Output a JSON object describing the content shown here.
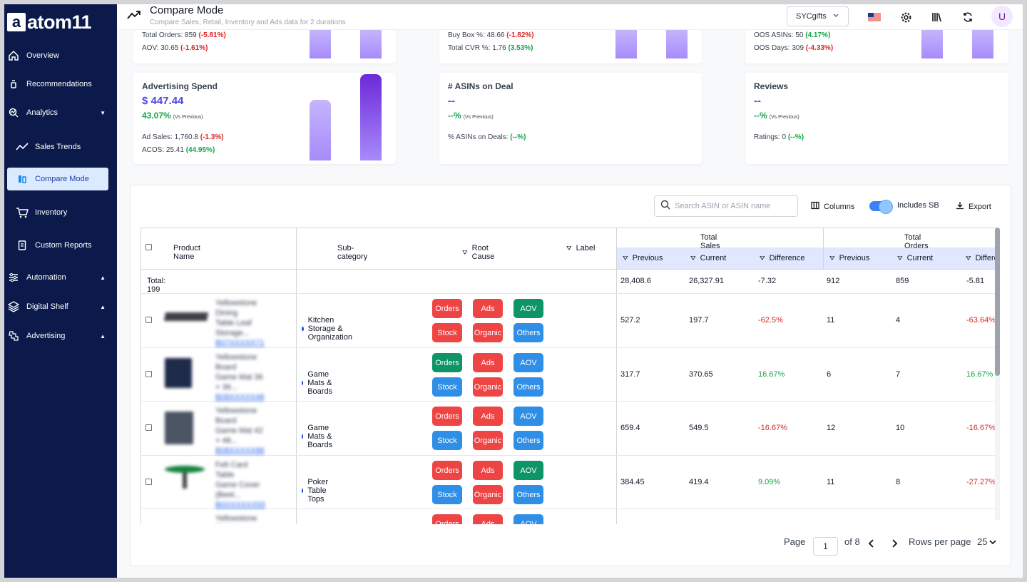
{
  "app": {
    "logo_text": "atom11",
    "logo_mark": "a"
  },
  "sidebar": {
    "items": [
      {
        "label": "Overview",
        "icon": "home-icon"
      },
      {
        "label": "Recommendations",
        "icon": "lightbulb-icon"
      },
      {
        "label": "Analytics",
        "icon": "analytics-icon",
        "caret": "▼"
      },
      {
        "label": "Sales Trends",
        "icon": "trend-icon"
      },
      {
        "label": "Compare Mode",
        "icon": "compare-icon",
        "active": true
      },
      {
        "label": "Inventory",
        "icon": "cart-icon"
      },
      {
        "label": "Custom Reports",
        "icon": "report-icon"
      },
      {
        "label": "Automation",
        "icon": "automation-icon",
        "caret": "▲"
      },
      {
        "label": "Digital Shelf",
        "icon": "shelf-icon",
        "caret": "▲"
      },
      {
        "label": "Advertising",
        "icon": "advertising-icon",
        "caret": "▲"
      }
    ]
  },
  "header": {
    "title": "Compare Mode",
    "subtitle": "Compare Sales, Retail, Inventory and Ads data for 2 durations",
    "store": "SYCgifts",
    "avatar": "U"
  },
  "cards_top": [
    {
      "l1_label": "Total Orders: 859",
      "l1_chg": "(-5.81%)",
      "l2_label": "AOV: 30.65",
      "l2_chg": "(-1.61%)",
      "l2_pos": false
    },
    {
      "l1_label": "Buy Box %: 48.66",
      "l1_chg": "(-1.82%)",
      "l2_label": "Total CVR %: 1.76",
      "l2_chg": "(3.53%)",
      "l2_pos": true
    },
    {
      "l1_label": "OOS ASINs: 50",
      "l1_chg": "(4.17%)",
      "l1_pos": true,
      "l2_label": "OOS Days: 309",
      "l2_chg": "(-4.33%)",
      "l2_pos": false
    }
  ],
  "cards": [
    {
      "title": "Advertising Spend",
      "value": "$ 447.44",
      "change": "43.07%",
      "vs": "(Vs Previous)",
      "l1_label": "Ad Sales: 1,760.8",
      "l1_chg": "(-1.3%)",
      "l2_label": "ACOS: 25.41",
      "l2_chg": "(44.95%)"
    },
    {
      "title": "# ASINs on Deal",
      "value": "--",
      "change": "--%",
      "vs": "(Vs Previous)",
      "l1_label": "% ASINs on Deals:",
      "l1_chg": "(--%)"
    },
    {
      "title": "Reviews",
      "value": "--",
      "change": "--%",
      "vs": "(Vs Previous)",
      "l1_label": "Ratings: 0",
      "l1_chg": "(--%)"
    }
  ],
  "toolbar": {
    "search_placeholder": "Search ASIN or ASIN name",
    "columns": "Columns",
    "includes_sb": "Includes SB",
    "export": "Export"
  },
  "table": {
    "headers": {
      "product": "Product Name",
      "subcat": "Sub-category",
      "root": "Root Cause",
      "label": "Label",
      "total_sales": "Total Sales",
      "total_orders": "Total Orders"
    },
    "subheaders": [
      "Previous",
      "Current",
      "Difference",
      "Previous",
      "Current",
      "Difference"
    ],
    "total": {
      "label": "Total: 199",
      "sales_prev": "28,408.6",
      "sales_cur": "26,327.91",
      "sales_diff": "-7.32",
      "orders_prev": "912",
      "orders_cur": "859",
      "orders_diff": "-5.81"
    },
    "rows": [
      {
        "name1": "Yellowstone Dining",
        "name2": "Table Leaf Storage...",
        "asin": "B07XXXXX71",
        "subcat": "Kitchen Storage & Organization",
        "tags": [
          "Orders",
          "Ads",
          "AOV",
          "Stock",
          "Organic",
          "Others"
        ],
        "colors": [
          "red",
          "red",
          "green",
          "red",
          "red",
          "blue"
        ],
        "sales_prev": "527.2",
        "sales_cur": "197.7",
        "sales_diff": "-62.5%",
        "orders_prev": "11",
        "orders_cur": "4",
        "orders_diff": "-63.64%",
        "pos": false
      },
      {
        "name1": "Yellowstone Board",
        "name2": "Game Mat 36 × 36...",
        "asin": "B08XXXXX48",
        "subcat": "Game Mats & Boards",
        "tags": [
          "Orders",
          "Ads",
          "AOV",
          "Stock",
          "Organic",
          "Others"
        ],
        "colors": [
          "green",
          "red",
          "blue",
          "blue",
          "red",
          "blue"
        ],
        "sales_prev": "317.7",
        "sales_cur": "370.65",
        "sales_diff": "16.67%",
        "orders_prev": "6",
        "orders_cur": "7",
        "orders_diff": "16.67%",
        "pos": true
      },
      {
        "name1": "Yellowstone Board",
        "name2": "Game Mat 42 × 48...",
        "asin": "B08XXXXX88",
        "subcat": "Game Mats & Boards",
        "tags": [
          "Orders",
          "Ads",
          "AOV",
          "Stock",
          "Organic",
          "Others"
        ],
        "colors": [
          "red",
          "red",
          "blue",
          "blue",
          "red",
          "blue"
        ],
        "sales_prev": "659.4",
        "sales_cur": "549.5",
        "sales_diff": "-16.67%",
        "orders_prev": "12",
        "orders_cur": "10",
        "orders_diff": "-16.67%",
        "pos": false
      },
      {
        "name1": "Felt Card Table",
        "name2": "Game Cover (Beet...",
        "asin": "B0XXXXXX93",
        "subcat": "Poker Table Tops",
        "tags": [
          "Orders",
          "Ads",
          "AOV",
          "Stock",
          "Organic",
          "Others"
        ],
        "colors": [
          "red",
          "red",
          "green",
          "blue",
          "red",
          "blue"
        ],
        "sales_prev": "384.45",
        "sales_cur": "419.4",
        "sales_diff": "9.09%",
        "orders_prev": "11",
        "orders_cur": "8",
        "orders_diff": "-27.27%",
        "pos": true,
        "orders_pos": false
      },
      {
        "name1": "Yellowstone Dining",
        "tags": [
          "Orders",
          "Ads",
          "AOV"
        ],
        "colors": [
          "red",
          "red",
          "blue"
        ]
      }
    ]
  },
  "pagination": {
    "page_label": "Page",
    "page": "1",
    "of": "of 8",
    "rows_label": "Rows per page",
    "rows": "25"
  },
  "colors": {
    "sidebar": "#0b1a4a",
    "accent": "#4f46e5",
    "red": "#ef4444",
    "green": "#0d9467",
    "blue": "#2f8ee6"
  }
}
